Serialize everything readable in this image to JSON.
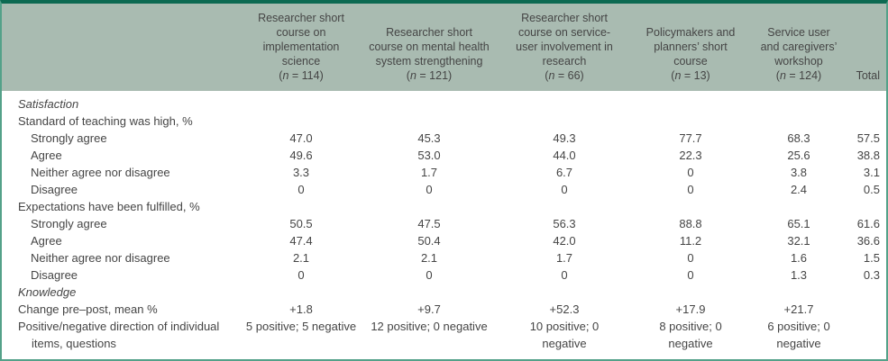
{
  "table": {
    "total_label": "Total",
    "columns": [
      {
        "title": "Researcher short course on implementation science",
        "n_text": "(n = 114)",
        "n_inline": false
      },
      {
        "title": "Researcher short course on mental health system strengthening",
        "n_text": "(n = 121)",
        "n_inline": true
      },
      {
        "title": "Researcher short course on service-user involvement in research",
        "n_text": "(n = 66)",
        "n_inline": false
      },
      {
        "title": "Policymakers and planners’ short course",
        "n_text": "(n = 13)",
        "n_inline": false
      },
      {
        "title": "Service user and caregivers’ workshop",
        "n_text": "(n = 124)",
        "n_inline": false
      }
    ],
    "rows": [
      {
        "label": "Satisfaction",
        "style": "section",
        "values": null
      },
      {
        "label": "Standard of teaching was high, %",
        "style": "plain",
        "values": null
      },
      {
        "label": "Strongly agree",
        "style": "item",
        "values": [
          "47.0",
          "45.3",
          "49.3",
          "77.7",
          "68.3",
          "57.5"
        ]
      },
      {
        "label": "Agree",
        "style": "item",
        "values": [
          "49.6",
          "53.0",
          "44.0",
          "22.3",
          "25.6",
          "38.8"
        ]
      },
      {
        "label": "Neither agree nor disagree",
        "style": "item",
        "values": [
          "3.3",
          "1.7",
          "6.7",
          "0",
          "3.8",
          "3.1"
        ]
      },
      {
        "label": "Disagree",
        "style": "item",
        "values": [
          "0",
          "0",
          "0",
          "0",
          "2.4",
          "0.5"
        ]
      },
      {
        "label": "Expectations have been fulfilled, %",
        "style": "plain",
        "values": null
      },
      {
        "label": "Strongly agree",
        "style": "item",
        "values": [
          "50.5",
          "47.5",
          "56.3",
          "88.8",
          "65.1",
          "61.6"
        ]
      },
      {
        "label": "Agree",
        "style": "item",
        "values": [
          "47.4",
          "50.4",
          "42.0",
          "11.2",
          "32.1",
          "36.6"
        ]
      },
      {
        "label": "Neither agree nor disagree",
        "style": "item",
        "values": [
          "2.1",
          "2.1",
          "1.7",
          "0",
          "1.6",
          "1.5"
        ]
      },
      {
        "label": "Disagree",
        "style": "item",
        "values": [
          "0",
          "0",
          "0",
          "0",
          "1.3",
          "0.3"
        ]
      },
      {
        "label": "Knowledge",
        "style": "section",
        "values": null
      },
      {
        "label": "Change pre–post, mean %",
        "style": "plain",
        "values": [
          "+1.8",
          "+9.7",
          "+52.3",
          "+17.9",
          "+21.7",
          ""
        ]
      },
      {
        "label": "Positive/negative direction of individual items, questions",
        "style": "hang",
        "values": [
          "5 positive; 5 negative",
          "12 positive; 0 negative",
          "10 positive; 0\nnegative",
          "8 positive; 0\nnegative",
          "6 positive; 0\nnegative",
          ""
        ]
      }
    ]
  },
  "colors": {
    "top_border": "#0d6a52",
    "side_border": "#54a189",
    "header_background": "#a9bbb1",
    "text": "#454545"
  }
}
